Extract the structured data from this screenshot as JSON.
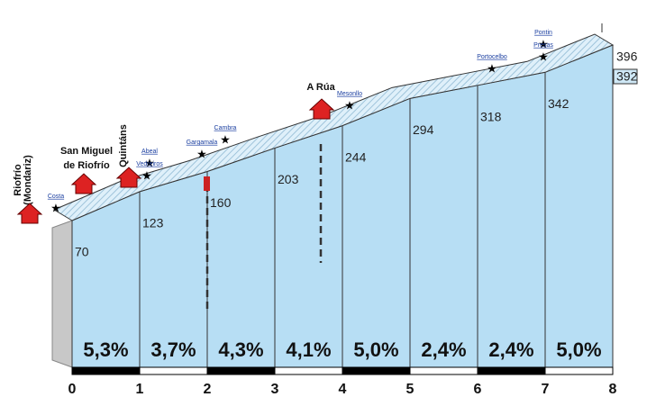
{
  "chart_data": {
    "type": "profile",
    "x": [
      0,
      1,
      2,
      3,
      4,
      5,
      6,
      7,
      8
    ],
    "values": [
      70,
      123,
      160,
      203,
      244,
      294,
      318,
      342,
      392
    ],
    "summit": 396,
    "xlim": [
      0,
      8
    ],
    "xticks": [
      0,
      1,
      2,
      3,
      4,
      5,
      6,
      7,
      8
    ],
    "gradients": {
      "values": [
        5.3,
        3.7,
        4.3,
        4.1,
        5.0,
        2.4,
        2.4,
        5.0
      ],
      "value_labels": [
        "5,3%",
        "3,7%",
        "4,3%",
        "4,1%",
        "5,0%",
        "2,4%",
        "2,4%",
        "5,0%"
      ]
    },
    "color": "#b7def4",
    "towns": [
      {
        "lines": [
          "Riofrío",
          "(Mondariz)"
        ]
      },
      {
        "lines": [
          "San Miguel",
          "de Riofrío"
        ]
      },
      {
        "lines": [
          "Quintáns"
        ]
      },
      {
        "lines": [
          "A Rúa"
        ]
      }
    ],
    "spots": [
      "Costa",
      "Abeal",
      "Vedreiros",
      "Gargamala",
      "Cambra",
      "Mesonllo",
      "Portocelbo",
      "Pontin",
      "Presas"
    ]
  }
}
